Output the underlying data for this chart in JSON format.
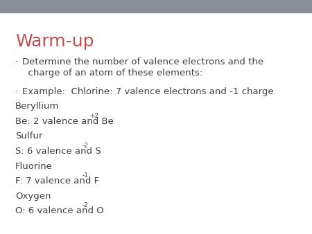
{
  "title": "Warm-up",
  "title_color": "#C0504D",
  "title_fontsize": 18,
  "background_color": "#FFFFFF",
  "header_bar_color": "#8B9098",
  "body_fontsize": 9.5,
  "sup_fontsize": 6.5,
  "text_color": "#404040",
  "bullet_char": "·",
  "lines": [
    {
      "type": "bullet",
      "text": "Determine the number of valence electrons and the\n  charge of an atom of these elements:"
    },
    {
      "type": "bullet",
      "text": "Example:  Chlorine: 7 valence electrons and -1 charge"
    },
    {
      "type": "plain",
      "text": "Beryllium",
      "sup": null
    },
    {
      "type": "plain",
      "text": "Be: 2 valence and Be",
      "sup": "+2"
    },
    {
      "type": "plain",
      "text": "Sulfur",
      "sup": null
    },
    {
      "type": "plain",
      "text": "S: 6 valence and S",
      "sup": "-2"
    },
    {
      "type": "plain",
      "text": "Fluorine",
      "sup": null
    },
    {
      "type": "plain",
      "text": "F: 7 valence and F",
      "sup": "-1"
    },
    {
      "type": "plain",
      "text": "Oxygen",
      "sup": null
    },
    {
      "type": "plain",
      "text": "O: 6 valence and O",
      "sup": "-2"
    }
  ]
}
